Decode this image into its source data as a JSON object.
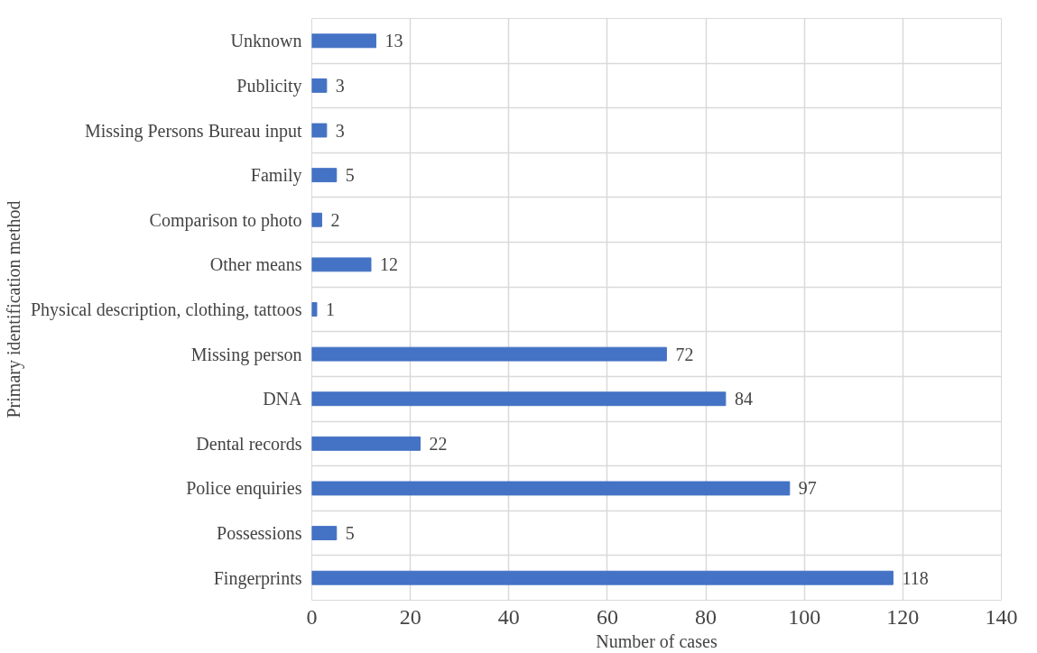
{
  "chart_data": {
    "type": "bar",
    "orientation": "horizontal",
    "xlabel": "Number of cases",
    "ylabel": "Primary identification method",
    "categories": [
      "Unknown",
      "Publicity",
      "Missing Persons Bureau input",
      "Family",
      "Comparison to photo",
      "Other means",
      "Physical description, clothing, tattoos",
      "Missing person",
      "DNA",
      "Dental records",
      "Police enquiries",
      "Possessions",
      "Fingerprints"
    ],
    "values": [
      13,
      3,
      3,
      5,
      2,
      12,
      1,
      72,
      84,
      22,
      97,
      5,
      118
    ],
    "color": "#4472c4",
    "xlim": [
      0,
      140
    ],
    "xticks": [
      0,
      20,
      40,
      60,
      80,
      100,
      120,
      140
    ],
    "grid": true,
    "data_labels": true
  }
}
